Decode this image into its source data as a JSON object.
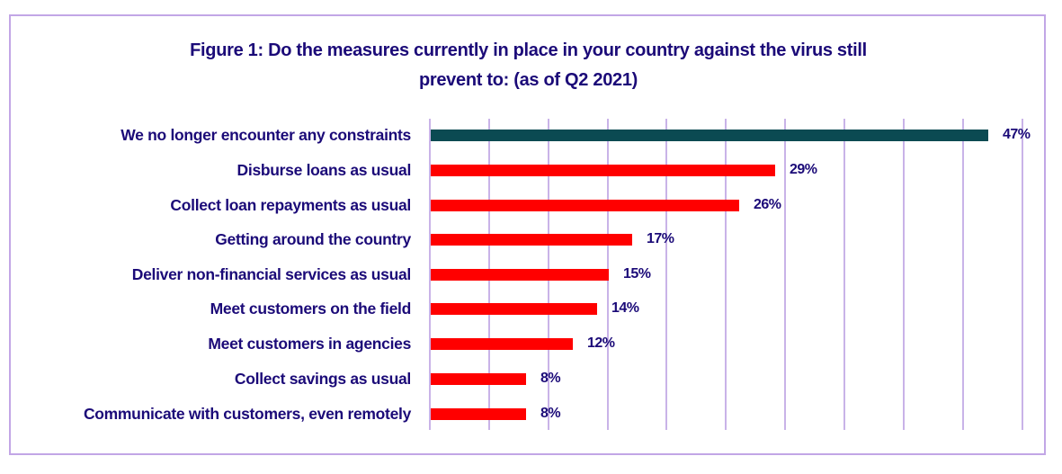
{
  "chart_data": {
    "type": "bar",
    "orientation": "horizontal",
    "title": "Figure 1: Do the measures currently in place in your country against the virus still prevent to: (as of Q2 2021)",
    "title_lines": [
      "Figure 1: Do the measures currently in place in your country against the virus still",
      "prevent to: (as of Q2 2021)"
    ],
    "categories": [
      "We no longer encounter any constraints",
      "Disburse loans as usual",
      "Collect loan repayments as usual",
      "Getting around the country",
      "Deliver non-financial services as usual",
      "Meet customers on the field",
      "Meet customers in agencies",
      "Collect savings as usual",
      "Communicate with customers, even remotely"
    ],
    "values": [
      47,
      29,
      26,
      17,
      15,
      14,
      12,
      8,
      8
    ],
    "value_labels": [
      "47%",
      "29%",
      "26%",
      "17%",
      "15%",
      "14%",
      "12%",
      "8%",
      "8%"
    ],
    "bar_colors": [
      "#0b4a52",
      "#ff0000",
      "#ff0000",
      "#ff0000",
      "#ff0000",
      "#ff0000",
      "#ff0000",
      "#ff0000",
      "#ff0000"
    ],
    "xlabel": "",
    "ylabel": "",
    "xlim": [
      0,
      50
    ],
    "grid": true,
    "legend": false
  },
  "colors": {
    "text": "#1b0a78",
    "highlight_bar": "#0b4a52",
    "bar": "#ff0000",
    "grid": "#c9b3e8",
    "border": "#c2a6e6"
  }
}
